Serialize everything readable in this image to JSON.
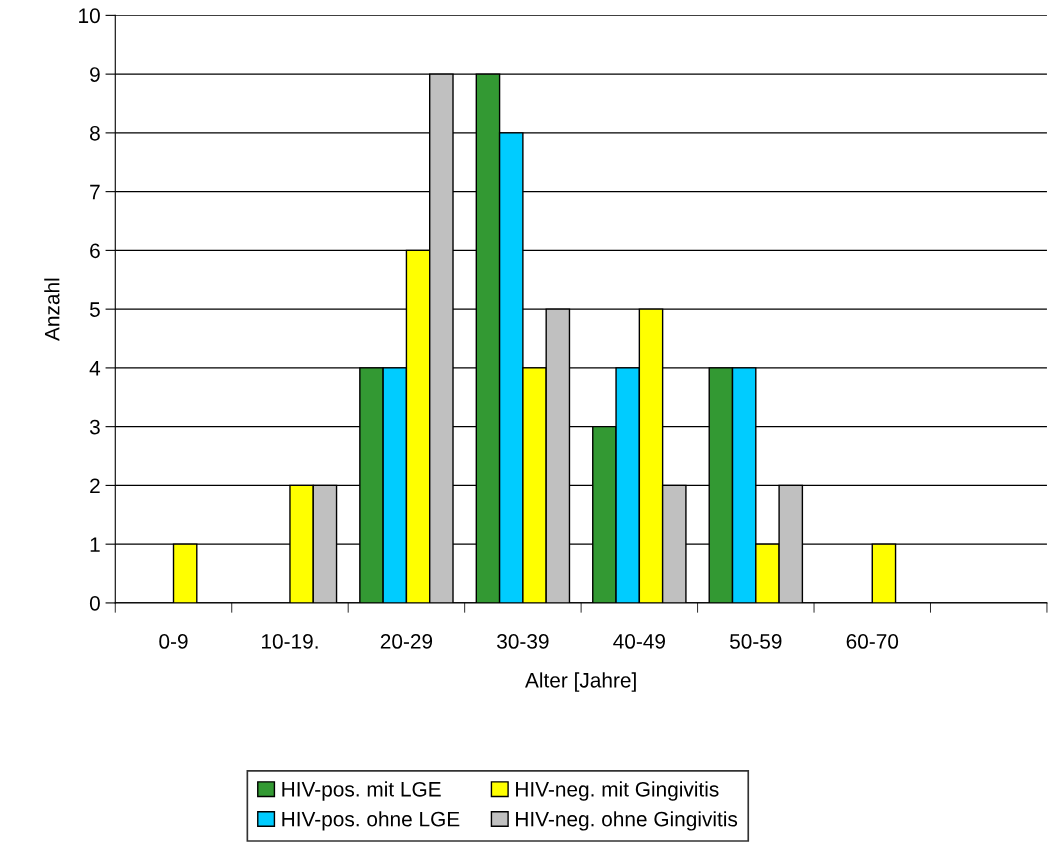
{
  "chart_data": {
    "type": "bar",
    "xlabel": "Alter [Jahre]",
    "ylabel": "Anzahl",
    "categories": [
      "0-9",
      "10-19.",
      "20-29",
      "30-39",
      "40-49",
      "50-59",
      "60-70",
      null
    ],
    "series": [
      {
        "name": "HIV-pos. mit LGE",
        "color": "#339933",
        "values": [
          null,
          null,
          4,
          9,
          3,
          4,
          null,
          null
        ]
      },
      {
        "name": "HIV-pos. ohne LGE",
        "color": "#00ccff",
        "values": [
          null,
          null,
          4,
          8,
          4,
          4,
          null,
          null
        ]
      },
      {
        "name": "HIV-neg. mit Gingivitis",
        "color": "#ffff00",
        "values": [
          1,
          2,
          6,
          4,
          5,
          1,
          1,
          null
        ]
      },
      {
        "name": "HIV-neg. ohne Gingivitis",
        "color": "#c0c0c0",
        "values": [
          null,
          2,
          9,
          5,
          2,
          2,
          null,
          null
        ]
      }
    ],
    "ylim": [
      0,
      10
    ],
    "yticks": [
      0,
      1,
      2,
      3,
      4,
      5,
      6,
      7,
      8,
      9,
      10
    ],
    "grid": "y",
    "legend": "bottom"
  }
}
